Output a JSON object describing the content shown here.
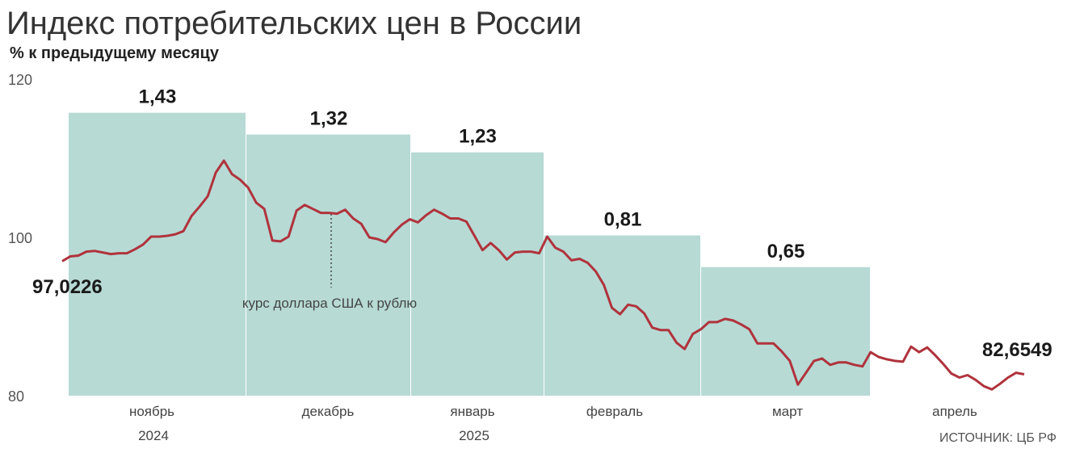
{
  "chart_data": {
    "type": "bar+line",
    "title": "Индекс потребительских цен в России",
    "subtitle": "% к предыдущему месяцу",
    "y_axis": {
      "ticks": [
        "120",
        "100",
        "80"
      ],
      "ylim": [
        80,
        120
      ]
    },
    "x_labels": [
      {
        "month": "ноябрь",
        "year": "2024"
      },
      {
        "month": "декабрь",
        "year": ""
      },
      {
        "month": "январь",
        "year": "2025"
      },
      {
        "month": "февраль",
        "year": ""
      },
      {
        "month": "март",
        "year": ""
      },
      {
        "month": "апрель",
        "year": ""
      }
    ],
    "bars": {
      "name": "ИПЦ, % к предыдущему месяцу",
      "color": "#b7dad5",
      "categories": [
        "ноябрь 2024",
        "декабрь 2024",
        "январь 2025",
        "февраль 2025",
        "март 2025"
      ],
      "values": [
        1.43,
        1.32,
        1.23,
        0.81,
        0.65
      ],
      "labels": [
        "1,43",
        "1,32",
        "1,23",
        "0,81",
        "0,65"
      ]
    },
    "line": {
      "name": "курс доллара США к рублю",
      "color": "#b0333c",
      "start_label": "97,0226",
      "end_label": "82,6549",
      "values": [
        97.0,
        97.6,
        97.7,
        98.2,
        98.3,
        98.1,
        97.9,
        98.0,
        98.0,
        98.5,
        99.1,
        100.1,
        100.1,
        100.2,
        100.4,
        100.8,
        102.7,
        103.9,
        105.2,
        108.2,
        109.7,
        108.0,
        107.3,
        106.3,
        104.4,
        103.6,
        99.6,
        99.5,
        100.1,
        103.4,
        104.1,
        103.6,
        103.1,
        103.1,
        103.0,
        103.5,
        102.4,
        101.7,
        100.0,
        99.8,
        99.4,
        100.6,
        101.6,
        102.3,
        101.9,
        102.8,
        103.5,
        103.0,
        102.4,
        102.4,
        102.0,
        100.2,
        98.4,
        99.3,
        98.4,
        97.2,
        98.1,
        98.2,
        98.2,
        98.0,
        100.1,
        98.7,
        98.2,
        97.1,
        97.3,
        96.8,
        95.7,
        94.0,
        91.1,
        90.3,
        91.5,
        91.3,
        90.4,
        88.6,
        88.3,
        88.3,
        86.7,
        85.9,
        87.8,
        88.4,
        89.3,
        89.3,
        89.7,
        89.5,
        89.0,
        88.4,
        86.6,
        86.6,
        86.6,
        85.6,
        84.4,
        81.4,
        82.9,
        84.4,
        84.7,
        83.9,
        84.2,
        84.2,
        83.9,
        83.7,
        85.5,
        84.9,
        84.6,
        84.4,
        84.3,
        86.2,
        85.5,
        86.1,
        85.1,
        84.0,
        82.8,
        82.3,
        82.6,
        82.0,
        81.2,
        80.8,
        81.5,
        82.3,
        82.9,
        82.7
      ]
    },
    "annotation": "курс доллара США к рублю",
    "source": "ИСТОЧНИК: ЦБ РФ"
  }
}
